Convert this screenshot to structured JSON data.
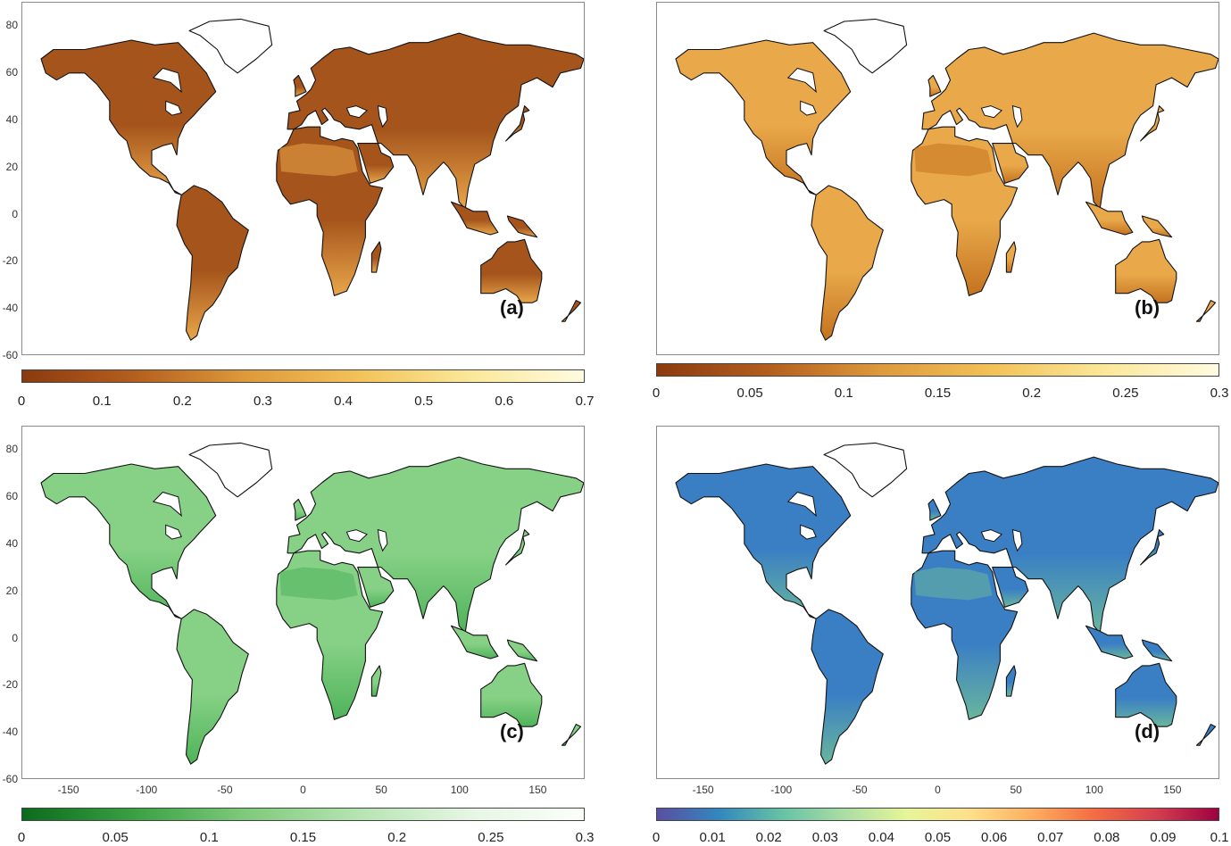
{
  "panels": [
    {
      "id": "a",
      "label": "(a)",
      "land_color": "#a5551c",
      "land_accent": "#e9a649",
      "ice_color": "#ffffff",
      "y_ticks": [
        "80",
        "60",
        "40",
        "20",
        "0",
        "-20",
        "-40",
        "-60"
      ],
      "x_ticks": [],
      "colorbar": {
        "stops": [
          "#8b3a0f",
          "#b45f1e",
          "#de9a3b",
          "#f3c259",
          "#fbe89a",
          "#fffbe0"
        ],
        "ticks": [
          "0",
          "0.1",
          "0.2",
          "0.3",
          "0.4",
          "0.5",
          "0.6",
          "0.7"
        ]
      }
    },
    {
      "id": "b",
      "label": "(b)",
      "land_color": "#e9a94a",
      "land_accent": "#c4721f",
      "ice_color": "#ffffff",
      "y_ticks": [],
      "x_ticks": [],
      "colorbar": {
        "stops": [
          "#8b3a0f",
          "#b45f1e",
          "#de9a3b",
          "#f3c259",
          "#fbe89a",
          "#fffbe0"
        ],
        "ticks": [
          "0",
          "0.05",
          "0.1",
          "0.15",
          "0.2",
          "0.25",
          "0.3"
        ]
      }
    },
    {
      "id": "c",
      "label": "(c)",
      "land_color": "#86d185",
      "land_accent": "#4fb35a",
      "ice_color": "#ffffff",
      "y_ticks": [
        "80",
        "60",
        "40",
        "20",
        "0",
        "-20",
        "-40",
        "-60"
      ],
      "x_ticks": [
        "-150",
        "-100",
        "-50",
        "0",
        "50",
        "100",
        "150"
      ],
      "colorbar": {
        "stops": [
          "#0b6b1d",
          "#3aa142",
          "#7fcb7c",
          "#b6e4b2",
          "#e6f6e4",
          "#fbfffa"
        ],
        "ticks": [
          "0",
          "0.05",
          "0.1",
          "0.15",
          "0.2",
          "0.25",
          "0.3"
        ]
      }
    },
    {
      "id": "d",
      "label": "(d)",
      "land_color": "#3a7fc4",
      "land_accent": "#69b69d",
      "ice_color": "#ffffff",
      "y_ticks": [],
      "x_ticks": [
        "-150",
        "-100",
        "-50",
        "0",
        "50",
        "100",
        "150"
      ],
      "colorbar": {
        "stops": [
          "#5a4ea2",
          "#3288bd",
          "#66c2a5",
          "#abdda4",
          "#e6f598",
          "#fee08b",
          "#fdae61",
          "#f46d43",
          "#d53e4f",
          "#9e0142"
        ],
        "ticks": [
          "0",
          "0.01",
          "0.02",
          "0.03",
          "0.04",
          "0.05",
          "0.06",
          "0.07",
          "0.08",
          "0.09",
          "0.1"
        ]
      }
    }
  ]
}
